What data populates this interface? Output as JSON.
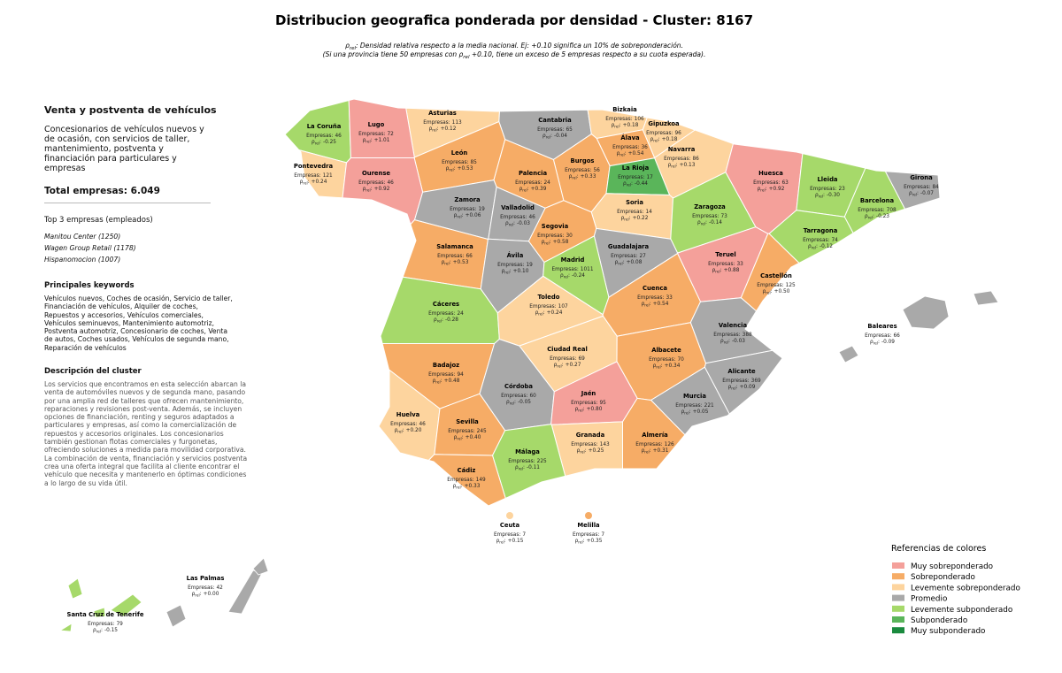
{
  "header": {
    "title": "Distribucion geografica ponderada por densidad - Cluster: 8167",
    "subtitle": [
      [
        {
          "t": "ρ"
        },
        {
          "s": "rel"
        },
        {
          "t": ": Densidad relativa respecto a la media nacional. Ej: +0.10 significa un 10% de sobreponderación."
        }
      ],
      [
        {
          "t": "(Si una provincia tiene 50 empresas con ρ"
        },
        {
          "s": "rel"
        },
        {
          "t": " +0.10, tiene un exceso de 5 empresas respecto a su cuota esperada)."
        }
      ]
    ]
  },
  "panel": {
    "title": "Venta y postventa de vehículos",
    "summary": "Concesionarios de vehículos nuevos y de ocasión, con servicios de taller, mantenimiento, postventa y financiación para particulares y empresas",
    "total": "Total empresas: 6.049",
    "top_title": "Top 3 empresas (empleados)",
    "top": [
      "Manitou Center (1250)",
      "Wagen Group Retail (1178)",
      "Hispanomocion (1007)"
    ],
    "keywords_title": "Principales keywords",
    "keywords": "Vehículos nuevos, Coches de ocasión, Servicio de taller, Financiación de vehículos, Alquiler de coches, Repuestos y accesorios, Vehículos comerciales, Vehículos seminuevos, Mantenimiento automotriz, Postventa automotriz, Concesionario de coches, Venta de autos, Coches usados, Vehículos de segunda mano, Reparación de vehículos",
    "description_title": "Descripción del cluster",
    "description": "Los servicios que encontramos en esta selección abarcan la venta de automóviles nuevos y de segunda mano, pasando por una amplia red de talleres que ofrecen mantenimiento, reparaciones y revisiones post-venta. Además, se incluyen opciones de financiación, renting y seguros adaptados a particulares y empresas, así como la comercialización de repuestos y accesorios originales. Los concesionarios también gestionan flotas comerciales y furgonetas, ofreciendo soluciones a medida para movilidad corporativa. La combinación de venta, financiación y servicios postventa crea una oferta integral que facilita al cliente encontrar el vehículo que necesita y mantenerlo en óptimas condiciones a lo largo de su vida útil."
  },
  "map": {
    "empresas_label": "Empresas:",
    "rho_label": {
      "symbol": "ρ",
      "sub": "rel",
      "suffix": ":"
    },
    "provinces": [
      {
        "name": "Asturias",
        "empresas": 113,
        "rho": "+0.12",
        "color": "#fdd49e"
      },
      {
        "name": "Cantabria",
        "empresas": 65,
        "rho": "-0.04",
        "color": "#a9a9a9"
      },
      {
        "name": "Bizkaia",
        "empresas": 106,
        "rho": "+0.18",
        "color": "#fdd49e"
      },
      {
        "name": "Gipuzkoa",
        "empresas": 96,
        "rho": "+0.18",
        "color": "#fdd49e"
      },
      {
        "name": "La Coruña",
        "empresas": 46,
        "rho": "-0.25",
        "color": "#a6d96a"
      },
      {
        "name": "Lugo",
        "empresas": 72,
        "rho": "+1.01",
        "color": "#f4a09a"
      },
      {
        "name": "Álava",
        "empresas": 36,
        "rho": "+0.54",
        "color": "#f6ac66"
      },
      {
        "name": "Navarra",
        "empresas": 86,
        "rho": "+0.13",
        "color": "#fdd49e"
      },
      {
        "name": "León",
        "empresas": 85,
        "rho": "+0.53",
        "color": "#f6ac66"
      },
      {
        "name": "Burgos",
        "empresas": 56,
        "rho": "+0.33",
        "color": "#f6ac66"
      },
      {
        "name": "Palencia",
        "empresas": 24,
        "rho": "+0.39",
        "color": "#f6ac66"
      },
      {
        "name": "La Rioja",
        "empresas": 17,
        "rho": "-0.44",
        "color": "#5ab55a"
      },
      {
        "name": "Pontevedra",
        "empresas": 121,
        "rho": "+0.24",
        "color": "#fdd49e"
      },
      {
        "name": "Ourense",
        "empresas": 46,
        "rho": "+0.92",
        "color": "#f4a09a"
      },
      {
        "name": "Huesca",
        "empresas": 63,
        "rho": "+0.92",
        "color": "#f4a09a"
      },
      {
        "name": "Lleida",
        "empresas": 23,
        "rho": "-0.30",
        "color": "#a6d96a"
      },
      {
        "name": "Girona",
        "empresas": 84,
        "rho": "-0.07",
        "color": "#a9a9a9"
      },
      {
        "name": "Zamora",
        "empresas": 19,
        "rho": "+0.06",
        "color": "#a9a9a9"
      },
      {
        "name": "Valladolid",
        "empresas": 46,
        "rho": "-0.03",
        "color": "#a9a9a9"
      },
      {
        "name": "Soria",
        "empresas": 14,
        "rho": "+0.22",
        "color": "#fdd49e"
      },
      {
        "name": "Zaragoza",
        "empresas": 73,
        "rho": "-0.14",
        "color": "#a6d96a"
      },
      {
        "name": "Barcelona",
        "empresas": 708,
        "rho": "-0.23",
        "color": "#a6d96a"
      },
      {
        "name": "Tarragona",
        "empresas": 74,
        "rho": "-0.12",
        "color": "#a6d96a"
      },
      {
        "name": "Segovia",
        "empresas": 30,
        "rho": "+0.58",
        "color": "#f6ac66"
      },
      {
        "name": "Salamanca",
        "empresas": 66,
        "rho": "+0.53",
        "color": "#f6ac66"
      },
      {
        "name": "Guadalajara",
        "empresas": 27,
        "rho": "+0.08",
        "color": "#a9a9a9"
      },
      {
        "name": "Ávila",
        "empresas": 19,
        "rho": "+0.10",
        "color": "#a9a9a9"
      },
      {
        "name": "Madrid",
        "empresas": 1011,
        "rho": "-0.24",
        "color": "#a6d96a"
      },
      {
        "name": "Teruel",
        "empresas": 33,
        "rho": "+0.88",
        "color": "#f4a09a"
      },
      {
        "name": "Castellón",
        "empresas": 125,
        "rho": "+0.50",
        "color": "#f6ac66"
      },
      {
        "name": "Cáceres",
        "empresas": 24,
        "rho": "-0.28",
        "color": "#a6d96a"
      },
      {
        "name": "Toledo",
        "empresas": 107,
        "rho": "+0.24",
        "color": "#fdd49e"
      },
      {
        "name": "Cuenca",
        "empresas": 33,
        "rho": "+0.54",
        "color": "#f6ac66"
      },
      {
        "name": "Valencia",
        "empresas": 388,
        "rho": "-0.03",
        "color": "#a9a9a9"
      },
      {
        "name": "Ciudad Real",
        "empresas": 69,
        "rho": "+0.27",
        "color": "#fdd49e"
      },
      {
        "name": "Albacete",
        "empresas": 70,
        "rho": "+0.34",
        "color": "#f6ac66"
      },
      {
        "name": "Badajoz",
        "empresas": 94,
        "rho": "+0.48",
        "color": "#f6ac66"
      },
      {
        "name": "Alicante",
        "empresas": 369,
        "rho": "+0.09",
        "color": "#a9a9a9"
      },
      {
        "name": "Córdoba",
        "empresas": 60,
        "rho": "-0.05",
        "color": "#a9a9a9"
      },
      {
        "name": "Jaén",
        "empresas": 95,
        "rho": "+0.80",
        "color": "#f4a09a"
      },
      {
        "name": "Murcia",
        "empresas": 221,
        "rho": "+0.05",
        "color": "#a9a9a9"
      },
      {
        "name": "Huelva",
        "empresas": 46,
        "rho": "+0.20",
        "color": "#fdd49e"
      },
      {
        "name": "Sevilla",
        "empresas": 245,
        "rho": "+0.40",
        "color": "#f6ac66"
      },
      {
        "name": "Granada",
        "empresas": 143,
        "rho": "+0.25",
        "color": "#fdd49e"
      },
      {
        "name": "Almería",
        "empresas": 126,
        "rho": "+0.31",
        "color": "#f6ac66"
      },
      {
        "name": "Málaga",
        "empresas": 225,
        "rho": "-0.11",
        "color": "#a6d96a"
      },
      {
        "name": "Cádiz",
        "empresas": 149,
        "rho": "+0.33",
        "color": "#f6ac66"
      },
      {
        "name": "Baleares",
        "empresas": 66,
        "rho": "-0.09",
        "color": "#a9a9a9"
      },
      {
        "name": "Ceuta",
        "empresas": 7,
        "rho": "+0.15",
        "color": "#fdd49e"
      },
      {
        "name": "Melilla",
        "empresas": 7,
        "rho": "+0.35",
        "color": "#f6ac66"
      },
      {
        "name": "Las Palmas",
        "empresas": 42,
        "rho": "+0.00",
        "color": "#a9a9a9"
      },
      {
        "name": "Santa Cruz de Tenerife",
        "empresas": 79,
        "rho": "-0.15",
        "color": "#a6d96a"
      }
    ]
  },
  "legend": {
    "title": "Referencias de colores",
    "entries": [
      {
        "name": "Muy sobreponderado",
        "color": "#f4a09a"
      },
      {
        "name": "Sobreponderado",
        "color": "#f6ac66"
      },
      {
        "name": "Levemente sobreponderado",
        "color": "#fdd49e"
      },
      {
        "name": "Promedio",
        "color": "#a9a9a9"
      },
      {
        "name": "Levemente subponderado",
        "color": "#a6d96a"
      },
      {
        "name": "Subponderado",
        "color": "#5ab55a"
      },
      {
        "name": "Muy subponderado",
        "color": "#1a8a3e"
      }
    ]
  }
}
